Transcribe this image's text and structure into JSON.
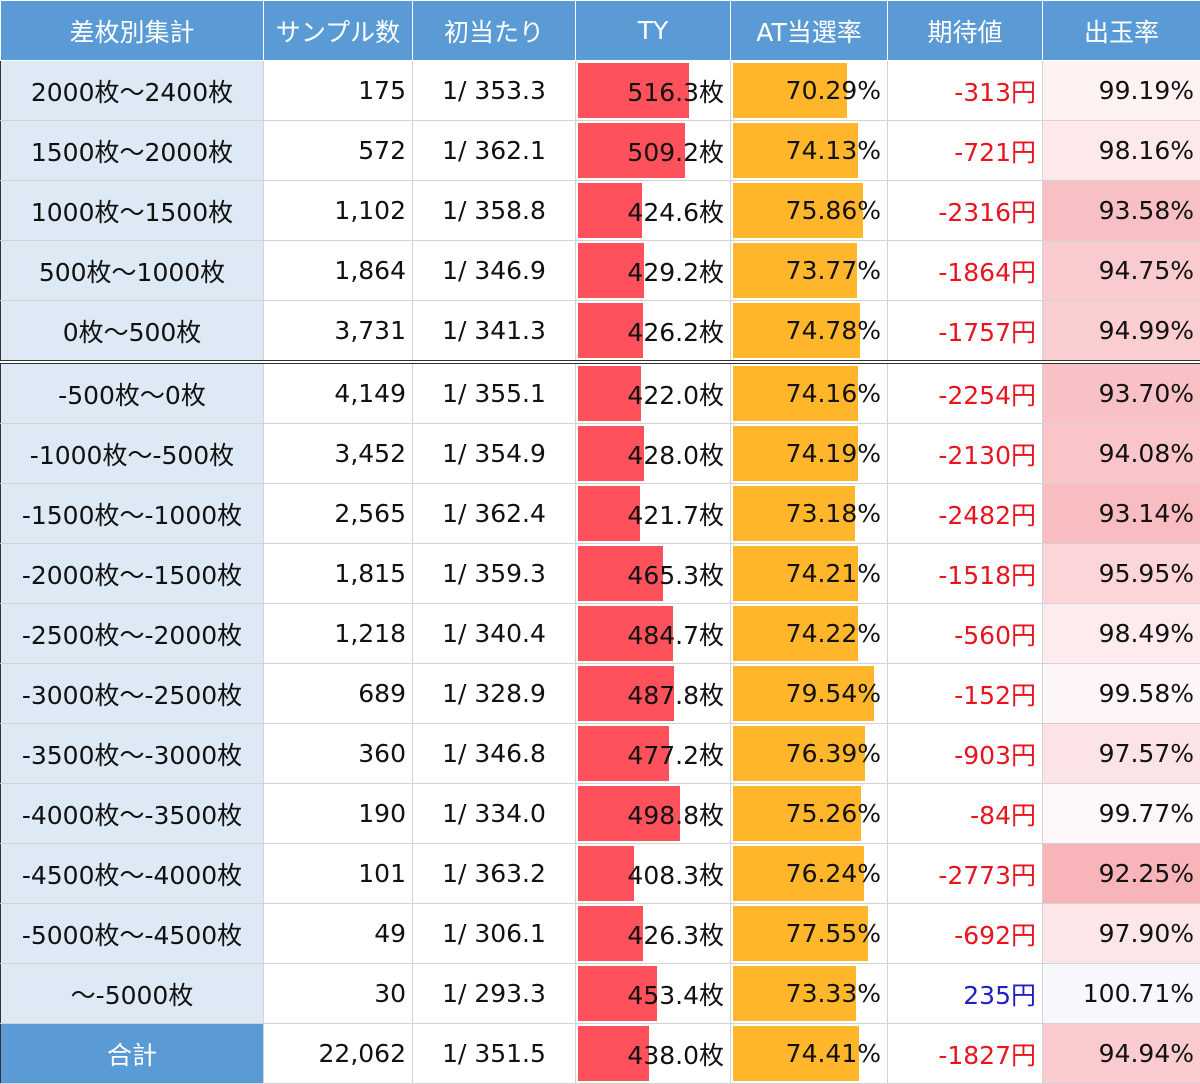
{
  "headers": [
    "差枚別集計",
    "サンプル数",
    "初当たり",
    "TY",
    "AT当選率",
    "期待値",
    "出玉率"
  ],
  "rows": [
    {
      "label": "2000枚～2400枚",
      "samples": "175",
      "first": "1/ 353.3",
      "ty": "516.3枚",
      "ty_value": 516.3,
      "at": "70.29%",
      "at_value": 70.29,
      "ev": "-313円",
      "ev_color": "#e8141e",
      "rate": "99.19%",
      "rate_value": 99.19
    },
    {
      "label": "1500枚～2000枚",
      "samples": "572",
      "first": "1/ 362.1",
      "ty": "509.2枚",
      "ty_value": 509.2,
      "at": "74.13%",
      "at_value": 74.13,
      "ev": "-721円",
      "ev_color": "#e8141e",
      "rate": "98.16%",
      "rate_value": 98.16
    },
    {
      "label": "1000枚～1500枚",
      "samples": "1,102",
      "first": "1/ 358.8",
      "ty": "424.6枚",
      "ty_value": 424.6,
      "at": "75.86%",
      "at_value": 75.86,
      "ev": "-2316円",
      "ev_color": "#e8141e",
      "rate": "93.58%",
      "rate_value": 93.58
    },
    {
      "label": "500枚～1000枚",
      "samples": "1,864",
      "first": "1/ 346.9",
      "ty": "429.2枚",
      "ty_value": 429.2,
      "at": "73.77%",
      "at_value": 73.77,
      "ev": "-1864円",
      "ev_color": "#e8141e",
      "rate": "94.75%",
      "rate_value": 94.75
    },
    {
      "label": "0枚～500枚",
      "samples": "3,731",
      "first": "1/ 341.3",
      "ty": "426.2枚",
      "ty_value": 426.2,
      "at": "74.78%",
      "at_value": 74.78,
      "ev": "-1757円",
      "ev_color": "#e8141e",
      "rate": "94.99%",
      "rate_value": 94.99
    },
    {
      "label": "-500枚～0枚",
      "samples": "4,149",
      "first": "1/ 355.1",
      "ty": "422.0枚",
      "ty_value": 422.0,
      "at": "74.16%",
      "at_value": 74.16,
      "ev": "-2254円",
      "ev_color": "#e8141e",
      "rate": "93.70%",
      "rate_value": 93.7
    },
    {
      "label": "-1000枚～-500枚",
      "samples": "3,452",
      "first": "1/ 354.9",
      "ty": "428.0枚",
      "ty_value": 428.0,
      "at": "74.19%",
      "at_value": 74.19,
      "ev": "-2130円",
      "ev_color": "#e8141e",
      "rate": "94.08%",
      "rate_value": 94.08
    },
    {
      "label": "-1500枚～-1000枚",
      "samples": "2,565",
      "first": "1/ 362.4",
      "ty": "421.7枚",
      "ty_value": 421.7,
      "at": "73.18%",
      "at_value": 73.18,
      "ev": "-2482円",
      "ev_color": "#e8141e",
      "rate": "93.14%",
      "rate_value": 93.14
    },
    {
      "label": "-2000枚～-1500枚",
      "samples": "1,815",
      "first": "1/ 359.3",
      "ty": "465.3枚",
      "ty_value": 465.3,
      "at": "74.21%",
      "at_value": 74.21,
      "ev": "-1518円",
      "ev_color": "#e8141e",
      "rate": "95.95%",
      "rate_value": 95.95
    },
    {
      "label": "-2500枚～-2000枚",
      "samples": "1,218",
      "first": "1/ 340.4",
      "ty": "484.7枚",
      "ty_value": 484.7,
      "at": "74.22%",
      "at_value": 74.22,
      "ev": "-560円",
      "ev_color": "#e8141e",
      "rate": "98.49%",
      "rate_value": 98.49
    },
    {
      "label": "-3000枚～-2500枚",
      "samples": "689",
      "first": "1/ 328.9",
      "ty": "487.8枚",
      "ty_value": 487.8,
      "at": "79.54%",
      "at_value": 79.54,
      "ev": "-152円",
      "ev_color": "#e8141e",
      "rate": "99.58%",
      "rate_value": 99.58
    },
    {
      "label": "-3500枚～-3000枚",
      "samples": "360",
      "first": "1/ 346.8",
      "ty": "477.2枚",
      "ty_value": 477.2,
      "at": "76.39%",
      "at_value": 76.39,
      "ev": "-903円",
      "ev_color": "#e8141e",
      "rate": "97.57%",
      "rate_value": 97.57
    },
    {
      "label": "-4000枚～-3500枚",
      "samples": "190",
      "first": "1/ 334.0",
      "ty": "498.8枚",
      "ty_value": 498.8,
      "at": "75.26%",
      "at_value": 75.26,
      "ev": "-84円",
      "ev_color": "#e8141e",
      "rate": "99.77%",
      "rate_value": 99.77
    },
    {
      "label": "-4500枚～-4000枚",
      "samples": "101",
      "first": "1/ 363.2",
      "ty": "408.3枚",
      "ty_value": 408.3,
      "at": "76.24%",
      "at_value": 76.24,
      "ev": "-2773円",
      "ev_color": "#e8141e",
      "rate": "92.25%",
      "rate_value": 92.25
    },
    {
      "label": "-5000枚～-4500枚",
      "samples": "49",
      "first": "1/ 306.1",
      "ty": "426.3枚",
      "ty_value": 426.3,
      "at": "77.55%",
      "at_value": 77.55,
      "ev": "-692円",
      "ev_color": "#e8141e",
      "rate": "97.90%",
      "rate_value": 97.9
    },
    {
      "label": "～-5000枚",
      "samples": "30",
      "first": "1/ 293.3",
      "ty": "453.4枚",
      "ty_value": 453.4,
      "at": "73.33%",
      "at_value": 73.33,
      "ev": "235円",
      "ev_color": "#1f1fc8",
      "rate": "100.71%",
      "rate_value": 100.71
    }
  ],
  "total": {
    "label": "合計",
    "samples": "22,062",
    "first": "1/ 351.5",
    "ty": "438.0枚",
    "ty_value": 438.0,
    "at": "74.41%",
    "at_value": 74.41,
    "ev": "-1827円",
    "ev_color": "#e8141e",
    "rate": "94.94%",
    "rate_value": 94.94
  },
  "colors": {
    "header": "#5b9bd5",
    "label_bg": "#dde9f5",
    "ty_bar": "#ff515b",
    "at_bar": "#ffb62a",
    "negative": "#e8141e",
    "positive": "#1f1fc8"
  }
}
